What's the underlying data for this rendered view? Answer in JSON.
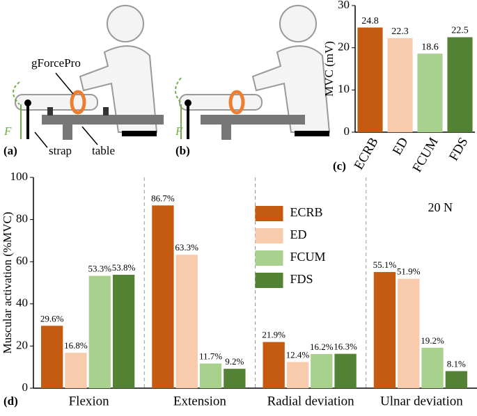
{
  "illustrations": {
    "sensor": "gForcePro",
    "strap": "strap",
    "table": "table",
    "panel_a": "(a)",
    "panel_b": "(b)",
    "force_a": "F",
    "force_b": "F"
  },
  "chart_data": [
    {
      "type": "bar",
      "panel": "(c)",
      "y_label": "MVC (mV)",
      "categories": [
        "ECRB",
        "ED",
        "FCUM",
        "FDS"
      ],
      "values": [
        24.8,
        22.3,
        18.6,
        22.5
      ],
      "colors": [
        "#c55a11",
        "#f8cbad",
        "#a9d18e",
        "#548235"
      ],
      "ylim": [
        0,
        30
      ],
      "yticks": [
        0,
        10,
        20,
        30
      ]
    },
    {
      "type": "grouped_bar",
      "panel": "(d)",
      "y_label": "Muscular activation (%MVC)",
      "annotation": "20 N",
      "categories": [
        "Flexion",
        "Extension",
        "Radial deviation",
        "Ulnar deviation"
      ],
      "series": [
        {
          "name": "ECRB",
          "color": "#c55a11",
          "values": [
            29.6,
            86.7,
            21.9,
            55.1
          ],
          "value_labels": [
            "29.6%",
            "86.7%",
            "21.9%",
            "55.1%"
          ]
        },
        {
          "name": "ED",
          "color": "#f8cbad",
          "values": [
            16.8,
            63.3,
            12.4,
            51.9
          ],
          "value_labels": [
            "16.8%",
            "63.3%",
            "12.4%",
            "51.9%"
          ]
        },
        {
          "name": "FCUM",
          "color": "#a9d18e",
          "values": [
            53.3,
            11.7,
            16.2,
            19.2
          ],
          "value_labels": [
            "53.3%",
            "11.7%",
            "16.2%",
            "19.2%"
          ]
        },
        {
          "name": "FDS",
          "color": "#548235",
          "values": [
            53.8,
            9.2,
            16.3,
            8.1
          ],
          "value_labels": [
            "53.8%",
            "9.2%",
            "16.3%",
            "8.1%"
          ]
        }
      ],
      "ylim": [
        0,
        100
      ],
      "yticks": [
        0,
        20,
        40,
        60,
        80,
        100
      ],
      "legend": "top-center"
    }
  ]
}
